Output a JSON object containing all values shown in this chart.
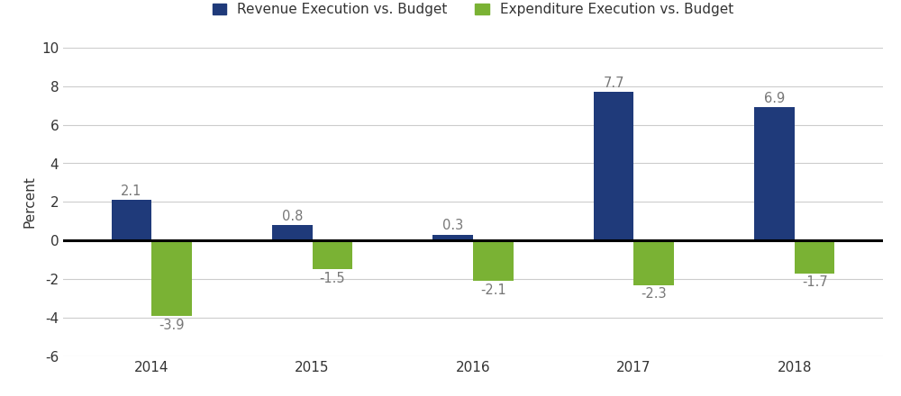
{
  "years": [
    2014,
    2015,
    2016,
    2017,
    2018
  ],
  "revenue": [
    2.1,
    0.8,
    0.3,
    7.7,
    6.9
  ],
  "expenditure": [
    -3.9,
    -1.5,
    -2.1,
    -2.3,
    -1.7
  ],
  "revenue_color": "#1f3a7a",
  "expenditure_color": "#7ab234",
  "ylabel": "Percent",
  "legend_revenue": "Revenue Execution vs. Budget",
  "legend_expenditure": "Expenditure Execution vs. Budget",
  "ylim": [
    -6,
    10
  ],
  "yticks": [
    -6,
    -4,
    -2,
    0,
    2,
    4,
    6,
    8,
    10
  ],
  "bar_width": 0.25,
  "label_fontsize": 10.5,
  "tick_fontsize": 11,
  "legend_fontsize": 11,
  "ylabel_fontsize": 11,
  "label_color": "#777777"
}
